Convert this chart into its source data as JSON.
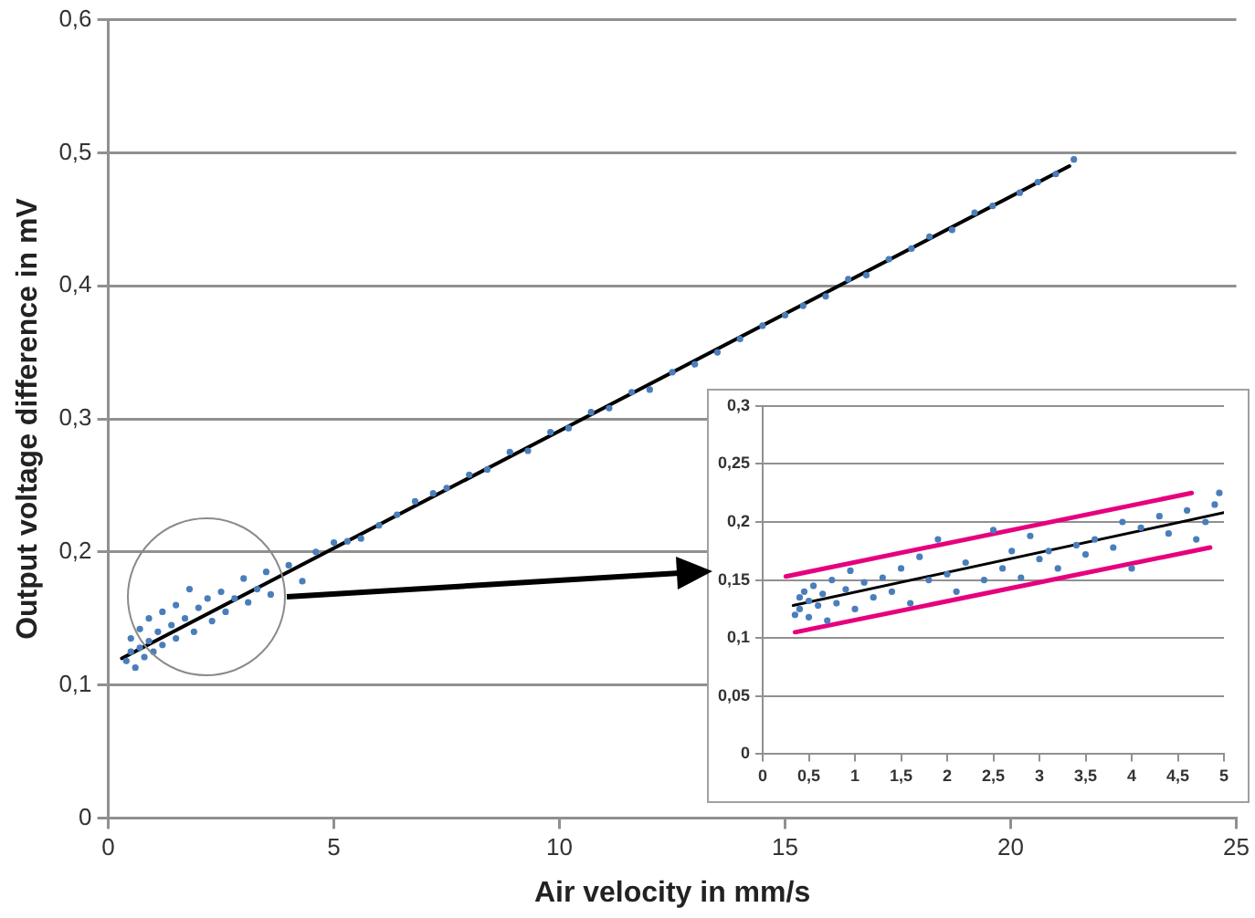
{
  "chart_data": [
    {
      "type": "scatter",
      "xlabel": "Air velocity in mm/s",
      "ylabel": "Output voltage difference in mV",
      "xlim": [
        0,
        25
      ],
      "xticks": [
        0,
        5,
        10,
        15,
        20,
        25
      ],
      "ylim": [
        0,
        0.6
      ],
      "yticks": [
        0,
        {
          "value": 0.1,
          "label": "0,1"
        },
        {
          "value": 0.2,
          "label": "0,2"
        },
        {
          "value": 0.3,
          "label": "0,3"
        },
        {
          "value": 0.4,
          "label": "0,4"
        },
        {
          "value": 0.5,
          "label": "0,5"
        },
        {
          "value": 0.6,
          "label": "0,6"
        }
      ],
      "grid": "y",
      "legend": false,
      "marker": "circle",
      "series": [
        {
          "color": "#4a7ebb",
          "x": [
            0.4,
            0.5,
            0.5,
            0.6,
            0.7,
            0.7,
            0.8,
            0.9,
            0.9,
            1.0,
            1.1,
            1.2,
            1.2,
            1.4,
            1.5,
            1.5,
            1.7,
            1.8,
            1.9,
            2.0,
            2.2,
            2.3,
            2.5,
            2.6,
            2.8,
            3.0,
            3.1,
            3.3,
            3.5,
            3.6,
            4.0,
            4.3,
            4.6,
            5.0,
            5.3,
            5.6,
            6.0,
            6.4,
            6.8,
            7.2,
            7.5,
            8.0,
            8.4,
            8.9,
            9.3,
            9.8,
            10.2,
            10.7,
            11.1,
            11.6,
            12.0,
            12.5,
            13.0,
            13.5,
            14.0,
            14.5,
            15.0,
            15.4,
            15.9,
            16.4,
            16.8,
            17.3,
            17.8,
            18.2,
            18.7,
            19.2,
            19.6,
            20.2,
            20.6,
            21.0,
            21.4
          ],
          "values": [
            0.118,
            0.125,
            0.135,
            0.113,
            0.128,
            0.142,
            0.121,
            0.133,
            0.15,
            0.125,
            0.14,
            0.155,
            0.13,
            0.145,
            0.16,
            0.135,
            0.15,
            0.172,
            0.14,
            0.158,
            0.165,
            0.148,
            0.17,
            0.155,
            0.165,
            0.18,
            0.162,
            0.172,
            0.185,
            0.168,
            0.19,
            0.178,
            0.2,
            0.207,
            0.208,
            0.21,
            0.22,
            0.228,
            0.238,
            0.244,
            0.248,
            0.258,
            0.262,
            0.275,
            0.276,
            0.29,
            0.293,
            0.305,
            0.308,
            0.32,
            0.322,
            0.335,
            0.341,
            0.35,
            0.36,
            0.37,
            0.378,
            0.385,
            0.392,
            0.405,
            0.408,
            0.42,
            0.428,
            0.437,
            0.442,
            0.455,
            0.46,
            0.47,
            0.478,
            0.484,
            0.495
          ]
        },
        {
          "type": "line",
          "marker": "none",
          "color": "#000000",
          "x": [
            0.3,
            21.3
          ],
          "values": [
            0.12,
            0.49
          ]
        }
      ]
    },
    {
      "type": "scatter",
      "xlim": [
        0,
        5
      ],
      "xticks": [
        0,
        {
          "value": 0.5,
          "label": "0,5"
        },
        1,
        {
          "value": 1.5,
          "label": "1,5"
        },
        2,
        {
          "value": 2.5,
          "label": "2,5"
        },
        3,
        {
          "value": 3.5,
          "label": "3,5"
        },
        4,
        {
          "value": 4.5,
          "label": "4,5"
        },
        5
      ],
      "ylim": [
        0,
        0.3
      ],
      "yticks": [
        0,
        {
          "value": 0.05,
          "label": "0,05"
        },
        {
          "value": 0.1,
          "label": "0,1"
        },
        {
          "value": 0.15,
          "label": "0,15"
        },
        {
          "value": 0.2,
          "label": "0,2"
        },
        {
          "value": 0.25,
          "label": "0,25"
        },
        {
          "value": 0.3,
          "label": "0,3"
        }
      ],
      "grid": "y",
      "legend": false,
      "marker": "circle",
      "series": [
        {
          "color": "#4a7ebb",
          "x": [
            0.35,
            0.4,
            0.4,
            0.45,
            0.5,
            0.5,
            0.55,
            0.6,
            0.65,
            0.7,
            0.75,
            0.8,
            0.9,
            0.95,
            1.0,
            1.1,
            1.2,
            1.3,
            1.4,
            1.5,
            1.6,
            1.7,
            1.8,
            1.9,
            2.0,
            2.1,
            2.2,
            2.4,
            2.5,
            2.6,
            2.7,
            2.8,
            2.9,
            3.0,
            3.1,
            3.2,
            3.4,
            3.5,
            3.6,
            3.8,
            3.9,
            4.0,
            4.1,
            4.3,
            4.4,
            4.6,
            4.7,
            4.8,
            4.9,
            4.95
          ],
          "values": [
            0.12,
            0.135,
            0.125,
            0.14,
            0.118,
            0.132,
            0.145,
            0.128,
            0.138,
            0.115,
            0.15,
            0.13,
            0.142,
            0.158,
            0.125,
            0.148,
            0.135,
            0.152,
            0.14,
            0.16,
            0.13,
            0.17,
            0.15,
            0.185,
            0.155,
            0.14,
            0.165,
            0.15,
            0.193,
            0.16,
            0.175,
            0.152,
            0.188,
            0.168,
            0.175,
            0.16,
            0.18,
            0.172,
            0.185,
            0.178,
            0.2,
            0.16,
            0.195,
            0.205,
            0.19,
            0.21,
            0.185,
            0.2,
            0.215,
            0.225
          ]
        },
        {
          "type": "line",
          "marker": "none",
          "color": "#000000",
          "x": [
            0.33,
            5
          ],
          "values": [
            0.128,
            0.208
          ]
        },
        {
          "type": "line",
          "marker": "none",
          "color": "#e6007e",
          "x": [
            0.25,
            4.65
          ],
          "values": [
            0.153,
            0.225
          ]
        },
        {
          "type": "line",
          "marker": "none",
          "color": "#e6007e",
          "x": [
            0.35,
            4.85
          ],
          "values": [
            0.105,
            0.178
          ]
        }
      ]
    }
  ]
}
